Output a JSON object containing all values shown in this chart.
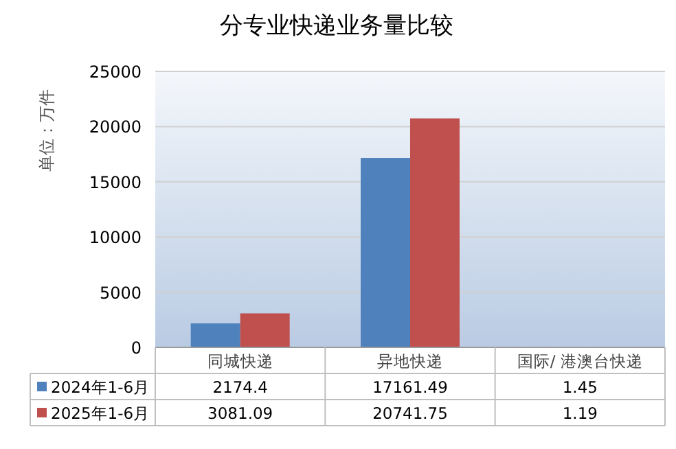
{
  "chart_data": {
    "type": "bar",
    "title": "分专业快递业务量比较",
    "ylabel": "单位：万件",
    "categories": [
      "同城快递",
      "异地快递",
      "国际/ 港澳台快递"
    ],
    "series": [
      {
        "name": "2024年1-6月",
        "color": "#4f81bd",
        "values": [
          2174.4,
          17161.49,
          1.45
        ]
      },
      {
        "name": "2025年1-6月",
        "color": "#c0504d",
        "values": [
          3081.09,
          20741.75,
          1.19
        ]
      }
    ],
    "ylim": [
      0,
      25000
    ],
    "yticks": [
      0,
      5000,
      10000,
      15000,
      20000,
      25000
    ],
    "grid": "y",
    "legend": "bottom",
    "data_labels": true
  }
}
